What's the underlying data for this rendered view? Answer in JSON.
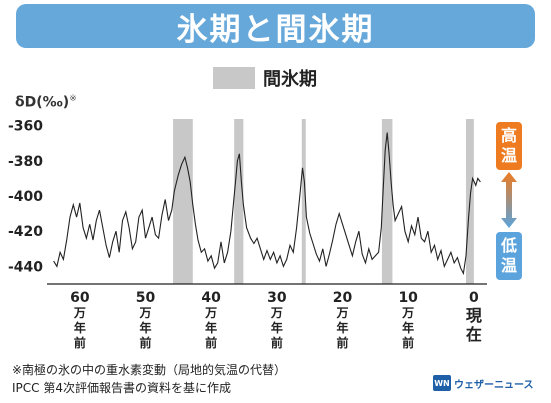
{
  "title": "氷期と間氷期",
  "legend": {
    "label": "間氷期"
  },
  "footnote_1": "※南極の氷の中の重水素変動（局地的気温の代替）",
  "footnote_2": "IPCC 第4次評価報告書の資料を基に作成",
  "brand": {
    "logo": "WN",
    "name": "ウェザーニュース"
  },
  "temperature_scale": {
    "high": "高温",
    "low": "低温",
    "high_color": "#ee7b1f",
    "low_color": "#5aa3dc"
  },
  "chart_data": {
    "type": "line",
    "title": "",
    "ylabel": "δD(‰)",
    "ylabel_mark": "※",
    "x_unit": "万年前",
    "xlim": [
      -65,
      2
    ],
    "ylim": [
      -450,
      -350
    ],
    "yticks": [
      -360,
      -380,
      -400,
      -420,
      -440
    ],
    "xticks": [
      {
        "value": -60,
        "lines": [
          "60",
          "万",
          "年",
          "前"
        ]
      },
      {
        "value": -50,
        "lines": [
          "50",
          "万",
          "年",
          "前"
        ]
      },
      {
        "value": -40,
        "lines": [
          "40",
          "万",
          "年",
          "前"
        ]
      },
      {
        "value": -30,
        "lines": [
          "30",
          "万",
          "年",
          "前"
        ]
      },
      {
        "value": -20,
        "lines": [
          "20",
          "万",
          "年",
          "前"
        ]
      },
      {
        "value": -10,
        "lines": [
          "10",
          "万",
          "年",
          "前"
        ]
      },
      {
        "value": 0,
        "lines": [
          "0",
          "現",
          "在"
        ]
      }
    ],
    "interglacials": [
      {
        "from": -45.8,
        "to": -42.8
      },
      {
        "from": -36.5,
        "to": -35.1
      },
      {
        "from": -26.2,
        "to": -25.6
      },
      {
        "from": -14.0,
        "to": -12.4
      },
      {
        "from": -1.2,
        "to": 0.0
      }
    ],
    "grid": false,
    "line_color": "#222222",
    "band_color": "#c8c8c8",
    "series": [
      {
        "values": [
          [
            -64.0,
            -437
          ],
          [
            -63.5,
            -440
          ],
          [
            -63.0,
            -432
          ],
          [
            -62.5,
            -436
          ],
          [
            -62.0,
            -425
          ],
          [
            -61.5,
            -412
          ],
          [
            -61.0,
            -405
          ],
          [
            -60.5,
            -412
          ],
          [
            -60.0,
            -404
          ],
          [
            -59.5,
            -418
          ],
          [
            -59.0,
            -424
          ],
          [
            -58.5,
            -416
          ],
          [
            -58.0,
            -425
          ],
          [
            -57.5,
            -414
          ],
          [
            -57.0,
            -408
          ],
          [
            -56.5,
            -418
          ],
          [
            -56.0,
            -428
          ],
          [
            -55.5,
            -435
          ],
          [
            -55.0,
            -426
          ],
          [
            -54.5,
            -420
          ],
          [
            -54.0,
            -432
          ],
          [
            -53.5,
            -414
          ],
          [
            -53.0,
            -409
          ],
          [
            -52.5,
            -418
          ],
          [
            -52.0,
            -430
          ],
          [
            -51.5,
            -426
          ],
          [
            -51.0,
            -412
          ],
          [
            -50.5,
            -408
          ],
          [
            -50.0,
            -424
          ],
          [
            -49.5,
            -418
          ],
          [
            -49.0,
            -412
          ],
          [
            -48.5,
            -422
          ],
          [
            -48.0,
            -424
          ],
          [
            -47.5,
            -411
          ],
          [
            -47.0,
            -402
          ],
          [
            -46.5,
            -414
          ],
          [
            -46.0,
            -408
          ],
          [
            -45.6,
            -397
          ],
          [
            -45.0,
            -388
          ],
          [
            -44.5,
            -382
          ],
          [
            -44.0,
            -378
          ],
          [
            -43.6,
            -384
          ],
          [
            -43.2,
            -392
          ],
          [
            -42.8,
            -405
          ],
          [
            -42.4,
            -416
          ],
          [
            -42.0,
            -425
          ],
          [
            -41.5,
            -432
          ],
          [
            -41.0,
            -430
          ],
          [
            -40.5,
            -437
          ],
          [
            -40.0,
            -434
          ],
          [
            -39.5,
            -441
          ],
          [
            -39.0,
            -438
          ],
          [
            -38.5,
            -426
          ],
          [
            -38.0,
            -438
          ],
          [
            -37.5,
            -432
          ],
          [
            -37.0,
            -420
          ],
          [
            -36.6,
            -404
          ],
          [
            -36.3,
            -392
          ],
          [
            -36.0,
            -380
          ],
          [
            -35.7,
            -376
          ],
          [
            -35.4,
            -392
          ],
          [
            -35.1,
            -405
          ],
          [
            -34.6,
            -418
          ],
          [
            -34.0,
            -424
          ],
          [
            -33.5,
            -427
          ],
          [
            -33.0,
            -424
          ],
          [
            -32.5,
            -430
          ],
          [
            -32.0,
            -436
          ],
          [
            -31.5,
            -431
          ],
          [
            -31.0,
            -436
          ],
          [
            -30.5,
            -432
          ],
          [
            -30.0,
            -438
          ],
          [
            -29.5,
            -434
          ],
          [
            -29.0,
            -440
          ],
          [
            -28.5,
            -436
          ],
          [
            -28.0,
            -428
          ],
          [
            -27.5,
            -432
          ],
          [
            -27.0,
            -418
          ],
          [
            -26.5,
            -400
          ],
          [
            -26.1,
            -384
          ],
          [
            -25.8,
            -392
          ],
          [
            -25.5,
            -412
          ],
          [
            -25.0,
            -421
          ],
          [
            -24.5,
            -427
          ],
          [
            -24.0,
            -433
          ],
          [
            -23.5,
            -437
          ],
          [
            -23.0,
            -430
          ],
          [
            -22.5,
            -440
          ],
          [
            -22.0,
            -433
          ],
          [
            -21.5,
            -425
          ],
          [
            -21.0,
            -416
          ],
          [
            -20.5,
            -410
          ],
          [
            -20.0,
            -416
          ],
          [
            -19.5,
            -422
          ],
          [
            -19.0,
            -428
          ],
          [
            -18.5,
            -434
          ],
          [
            -18.0,
            -426
          ],
          [
            -17.5,
            -420
          ],
          [
            -17.0,
            -433
          ],
          [
            -16.5,
            -438
          ],
          [
            -16.0,
            -430
          ],
          [
            -15.5,
            -436
          ],
          [
            -15.0,
            -434
          ],
          [
            -14.5,
            -432
          ],
          [
            -14.1,
            -418
          ],
          [
            -13.8,
            -396
          ],
          [
            -13.5,
            -374
          ],
          [
            -13.2,
            -364
          ],
          [
            -12.9,
            -376
          ],
          [
            -12.6,
            -392
          ],
          [
            -12.3,
            -405
          ],
          [
            -12.0,
            -414
          ],
          [
            -11.5,
            -410
          ],
          [
            -11.0,
            -406
          ],
          [
            -10.5,
            -420
          ],
          [
            -10.0,
            -426
          ],
          [
            -9.5,
            -417
          ],
          [
            -9.0,
            -422
          ],
          [
            -8.5,
            -412
          ],
          [
            -8.0,
            -424
          ],
          [
            -7.5,
            -426
          ],
          [
            -7.0,
            -420
          ],
          [
            -6.5,
            -432
          ],
          [
            -6.0,
            -428
          ],
          [
            -5.5,
            -436
          ],
          [
            -5.0,
            -431
          ],
          [
            -4.5,
            -440
          ],
          [
            -4.0,
            -436
          ],
          [
            -3.5,
            -432
          ],
          [
            -3.0,
            -438
          ],
          [
            -2.5,
            -435
          ],
          [
            -2.0,
            -441
          ],
          [
            -1.6,
            -444
          ],
          [
            -1.2,
            -434
          ],
          [
            -0.8,
            -412
          ],
          [
            -0.5,
            -398
          ],
          [
            -0.2,
            -390
          ],
          [
            0.3,
            -394
          ],
          [
            0.6,
            -390
          ],
          [
            1.0,
            -392
          ]
        ]
      }
    ]
  }
}
